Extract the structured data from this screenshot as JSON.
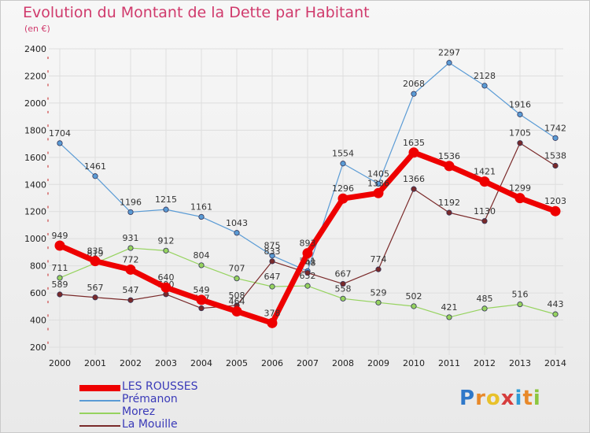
{
  "title": "Evolution du Montant de la Dette par Habitant",
  "subtitle": "(en €)",
  "brand": {
    "text": "Proxiti",
    "letters": [
      "P",
      "r",
      "o",
      "x",
      "i",
      "t",
      "i"
    ],
    "colors": [
      "#2f78c9",
      "#e8892a",
      "#e8c12a",
      "#d63d3d",
      "#2f9bd6",
      "#e8892a",
      "#8cc63f"
    ]
  },
  "chart_data": {
    "type": "line",
    "title": "Evolution du Montant de la Dette par Habitant",
    "ylabel": "(en €)",
    "x": [
      "2000",
      "2001",
      "2002",
      "2003",
      "2004",
      "2005",
      "2006",
      "2007",
      "2008",
      "2009",
      "2010",
      "2011",
      "2012",
      "2013",
      "2014"
    ],
    "ylim": [
      200,
      2400
    ],
    "yticks": [
      200,
      400,
      600,
      800,
      1000,
      1200,
      1400,
      1600,
      1800,
      2000,
      2200,
      2400
    ],
    "grid": true,
    "legend_position": "bottom-left",
    "series": [
      {
        "name": "LES ROUSSES",
        "color": "#ee0000",
        "width": 7,
        "values": [
          949,
          835,
          772,
          640,
          549,
          464,
          378,
          893,
          1296,
          1336,
          1635,
          1536,
          1421,
          1299,
          1203
        ]
      },
      {
        "name": "Prémanon",
        "color": "#5a9bd5",
        "width": 1.2,
        "values": [
          1704,
          1461,
          1196,
          1215,
          1161,
          1043,
          875,
          761,
          1554,
          1405,
          2068,
          2297,
          2128,
          1916,
          1742
        ]
      },
      {
        "name": "Morez",
        "color": "#96d35f",
        "width": 1.2,
        "values": [
          711,
          819,
          931,
          912,
          804,
          707,
          647,
          652,
          558,
          529,
          502,
          421,
          485,
          516,
          443
        ]
      },
      {
        "name": "La Mouille",
        "color": "#7a2a2a",
        "width": 1.2,
        "values": [
          589,
          567,
          547,
          590,
          487,
          508,
          833,
          748,
          667,
          774,
          1366,
          1192,
          1130,
          1705,
          1538
        ]
      }
    ]
  }
}
